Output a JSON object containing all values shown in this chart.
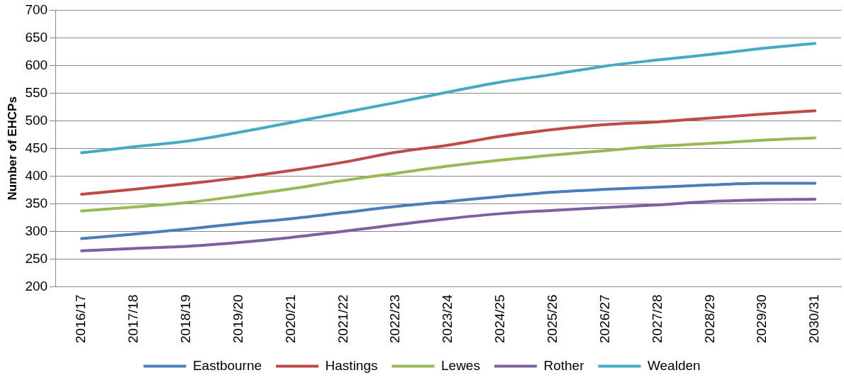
{
  "chart_data": {
    "type": "line",
    "ylabel": "Number of EHCPs",
    "categories": [
      "2016/17",
      "2017/18",
      "2018/19",
      "2019/20",
      "2020/21",
      "2021/22",
      "2022/23",
      "2023/24",
      "2024/25",
      "2025/26",
      "2026/27",
      "2027/28",
      "2028/29",
      "2029/30",
      "2030/31"
    ],
    "series": [
      {
        "name": "Eastbourne",
        "color": "#4a7ebb",
        "values": [
          287,
          295,
          304,
          314,
          323,
          334,
          345,
          354,
          363,
          371,
          376,
          380,
          384,
          387,
          387
        ]
      },
      {
        "name": "Hastings",
        "color": "#be4b48",
        "values": [
          367,
          376,
          386,
          397,
          410,
          425,
          443,
          456,
          472,
          484,
          493,
          498,
          505,
          512,
          518
        ]
      },
      {
        "name": "Lewes",
        "color": "#98b954",
        "values": [
          337,
          344,
          352,
          364,
          377,
          392,
          405,
          418,
          429,
          438,
          446,
          454,
          459,
          465,
          469
        ]
      },
      {
        "name": "Rother",
        "color": "#7d60a0",
        "values": [
          265,
          269,
          273,
          280,
          289,
          300,
          312,
          323,
          332,
          338,
          343,
          348,
          354,
          357,
          358
        ]
      },
      {
        "name": "Wealden",
        "color": "#46aac5",
        "values": [
          442,
          453,
          463,
          479,
          497,
          515,
          533,
          552,
          570,
          584,
          599,
          610,
          620,
          631,
          640
        ]
      }
    ],
    "ylim": [
      200,
      700
    ],
    "yticks": [
      200,
      250,
      300,
      350,
      400,
      450,
      500,
      550,
      600,
      650,
      700
    ],
    "grid": "y",
    "legend": "bottom",
    "marker": "none",
    "line_style": "solid"
  }
}
